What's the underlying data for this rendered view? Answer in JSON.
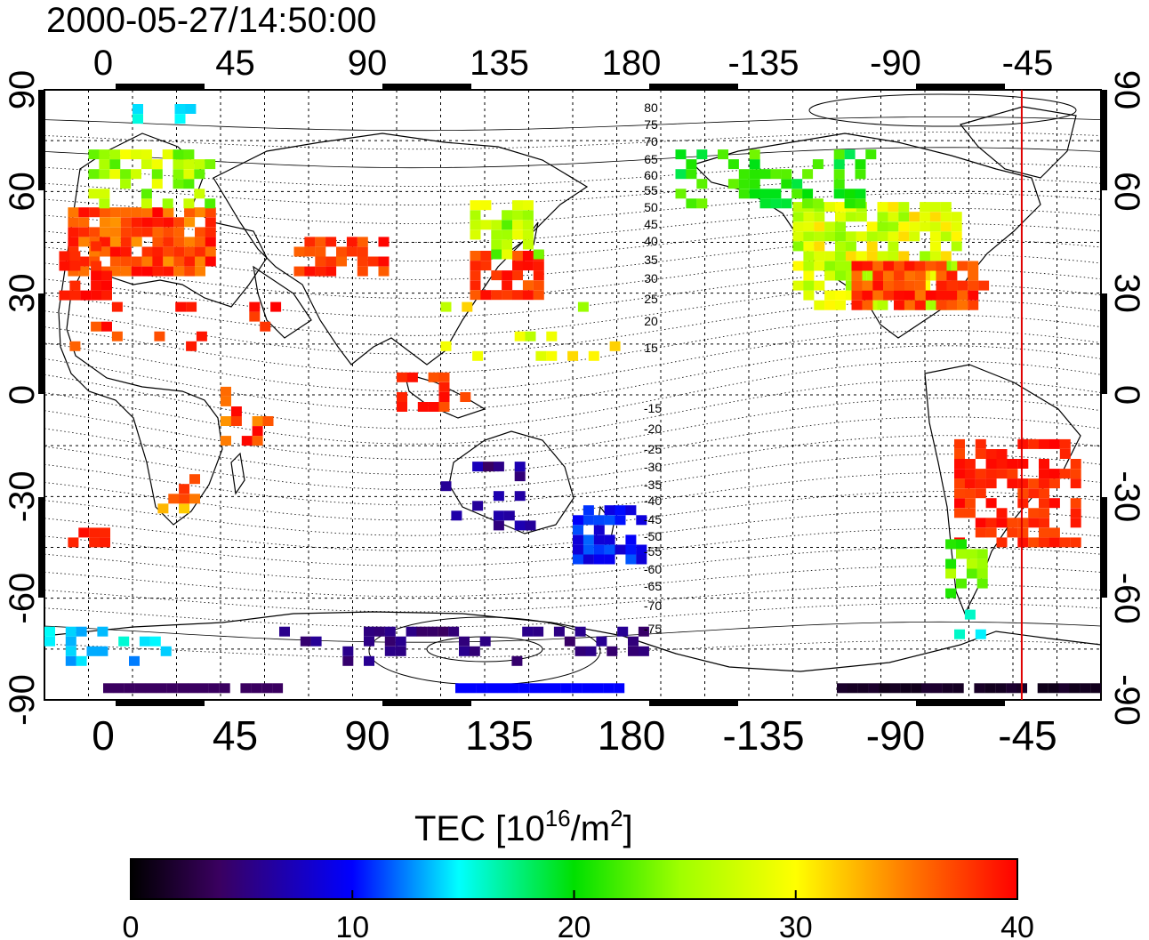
{
  "title": "2000-05-27/14:50:00",
  "lon_ticks": [
    "0",
    "45",
    "90",
    "135",
    "180",
    "-135",
    "-90",
    "-45"
  ],
  "lat_ticks": [
    "90",
    "60",
    "30",
    "0",
    "-30",
    "-60",
    "-90"
  ],
  "contour_labels_north": [
    "80",
    "75",
    "70",
    "65",
    "60",
    "55",
    "50",
    "45",
    "40",
    "35",
    "30",
    "25",
    "20",
    "15"
  ],
  "contour_labels_south": [
    "-15",
    "-20",
    "-25",
    "-30",
    "-35",
    "-40",
    "-45",
    "-50",
    "-55",
    "-60",
    "-65",
    "-70",
    "-75"
  ],
  "colorbar": {
    "title_main": "TEC  [10",
    "title_sup1": "16",
    "title_mid": "/m",
    "title_sup2": "2",
    "title_end": "]",
    "ticks": [
      "0",
      "10",
      "20",
      "30",
      "40"
    ],
    "range": [
      0,
      40
    ]
  },
  "map": {
    "lon_range": [
      -20,
      340
    ],
    "lat_range": [
      -90,
      90
    ],
    "terminator_lon": -47,
    "terminator_color": "#e00000"
  }
}
